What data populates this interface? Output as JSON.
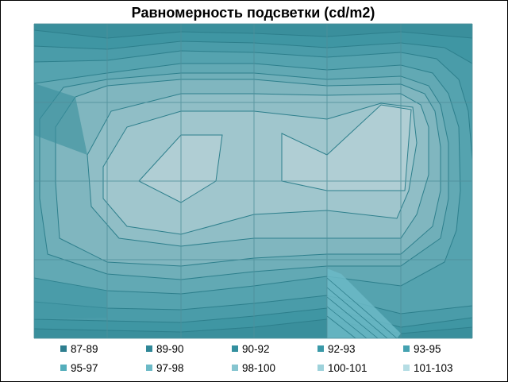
{
  "chart_data": {
    "type": "contour",
    "title": "Равномерность подсветки (cd/m2)",
    "grid": true,
    "legend_position": "bottom",
    "ranges": [
      {
        "label": "87-89",
        "color": "#2e7e8f"
      },
      {
        "label": "89-90",
        "color": "#2f8797"
      },
      {
        "label": "90-92",
        "color": "#34909f"
      },
      {
        "label": "92-93",
        "color": "#3a99a8"
      },
      {
        "label": "93-95",
        "color": "#44a2b1"
      },
      {
        "label": "95-97",
        "color": "#55aebc"
      },
      {
        "label": "97-98",
        "color": "#6cbac7"
      },
      {
        "label": "98-100",
        "color": "#86c5d0"
      },
      {
        "label": "100-101",
        "color": "#9ed2db"
      },
      {
        "label": "101-103",
        "color": "#b5dde4"
      }
    ]
  }
}
